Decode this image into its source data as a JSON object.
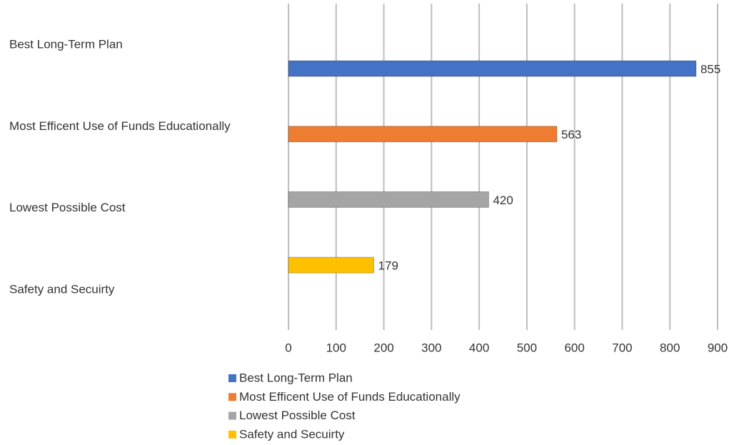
{
  "chart_data": {
    "type": "bar",
    "orientation": "horizontal",
    "categories": [
      "Best Long-Term Plan",
      "Most Efficent Use of Funds Educationally",
      "Lowest Possible Cost",
      "Safety and Secuirty"
    ],
    "values": [
      855,
      563,
      420,
      179
    ],
    "colors": [
      "#4472c4",
      "#ed7d31",
      "#a5a5a5",
      "#ffc000"
    ],
    "xlim": [
      0,
      900
    ],
    "xticks": [
      0,
      100,
      200,
      300,
      400,
      500,
      600,
      700,
      800,
      900
    ],
    "grid": true,
    "legend": "bottom"
  }
}
